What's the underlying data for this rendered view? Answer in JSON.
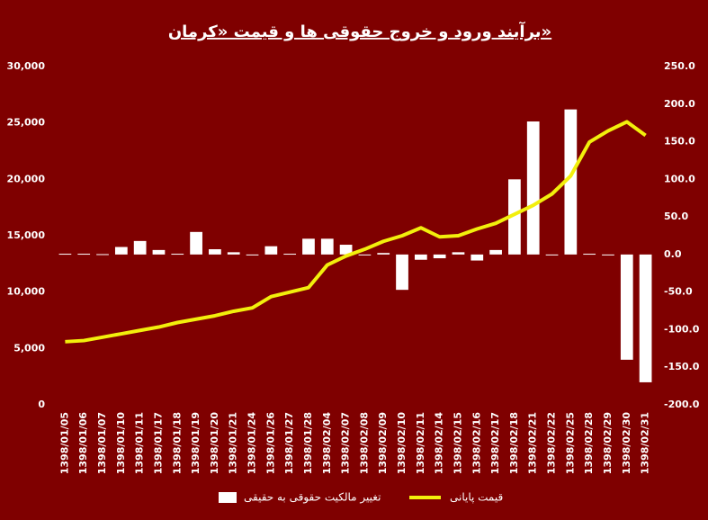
{
  "chart_data": {
    "type": "bar",
    "title": "برآیند ورود و خروج حقوقی ها و قیمت «کرمان»",
    "categories": [
      "1398/01/05",
      "1398/01/06",
      "1398/01/07",
      "1398/01/10",
      "1398/01/11",
      "1398/01/17",
      "1398/01/18",
      "1398/01/19",
      "1398/01/20",
      "1398/01/21",
      "1398/01/24",
      "1398/01/26",
      "1398/01/27",
      "1398/01/28",
      "1398/02/04",
      "1398/02/07",
      "1398/02/08",
      "1398/02/09",
      "1398/02/10",
      "1398/02/11",
      "1398/02/14",
      "1398/02/15",
      "1398/02/16",
      "1398/02/17",
      "1398/02/18",
      "1398/02/21",
      "1398/02/22",
      "1398/02/25",
      "1398/02/28",
      "1398/02/29",
      "1398/02/30",
      "1398/02/31"
    ],
    "series": [
      {
        "name": "تغییر مالکیت حقوقی به حقیقی",
        "type": "bar",
        "axis": "y2",
        "color": "#ffffff",
        "values": [
          1,
          1,
          0.5,
          10,
          18,
          6,
          1,
          30,
          7,
          3,
          0,
          11,
          1,
          21,
          21,
          13,
          0,
          2,
          -47,
          -7,
          -5,
          3,
          -8,
          6,
          100,
          177,
          0,
          193,
          1,
          0,
          -140,
          -170
        ]
      },
      {
        "name": "قیمت پایانی",
        "type": "line",
        "color": "#f2ef0c",
        "values": [
          5600,
          5700,
          6000,
          6300,
          6600,
          6900,
          7300,
          7600,
          7900,
          8300,
          8600,
          9600,
          10000,
          10400,
          12400,
          13200,
          13800,
          14500,
          15000,
          15700,
          14900,
          15000,
          15600,
          16100,
          16900,
          17700,
          18700,
          20300,
          23300,
          24300,
          25100,
          23900
        ]
      }
    ],
    "ylim": [
      0,
      30000
    ],
    "yticks": [
      0,
      {
        "value": 5000,
        "label": "5,000"
      },
      {
        "value": 10000,
        "label": "10,000"
      },
      {
        "value": 15000,
        "label": "15,000"
      },
      {
        "value": 20000,
        "label": "20,000"
      },
      {
        "value": 25000,
        "label": "25,000"
      },
      {
        "value": 30000,
        "label": "30,000"
      }
    ],
    "y2lim": [
      -200,
      250
    ],
    "y2ticks": [
      {
        "value": -200,
        "label": "-200.0"
      },
      {
        "value": -150,
        "label": "-150.0"
      },
      {
        "value": -100,
        "label": "-100.0"
      },
      {
        "value": -50,
        "label": "-50.0"
      },
      {
        "value": 0,
        "label": "0.0"
      },
      {
        "value": 50,
        "label": "50.0"
      },
      {
        "value": 100,
        "label": "100.0"
      },
      {
        "value": 150,
        "label": "150.0"
      },
      {
        "value": 200,
        "label": "200.0"
      },
      {
        "value": 250,
        "label": "250.0"
      }
    ],
    "grid": false
  }
}
